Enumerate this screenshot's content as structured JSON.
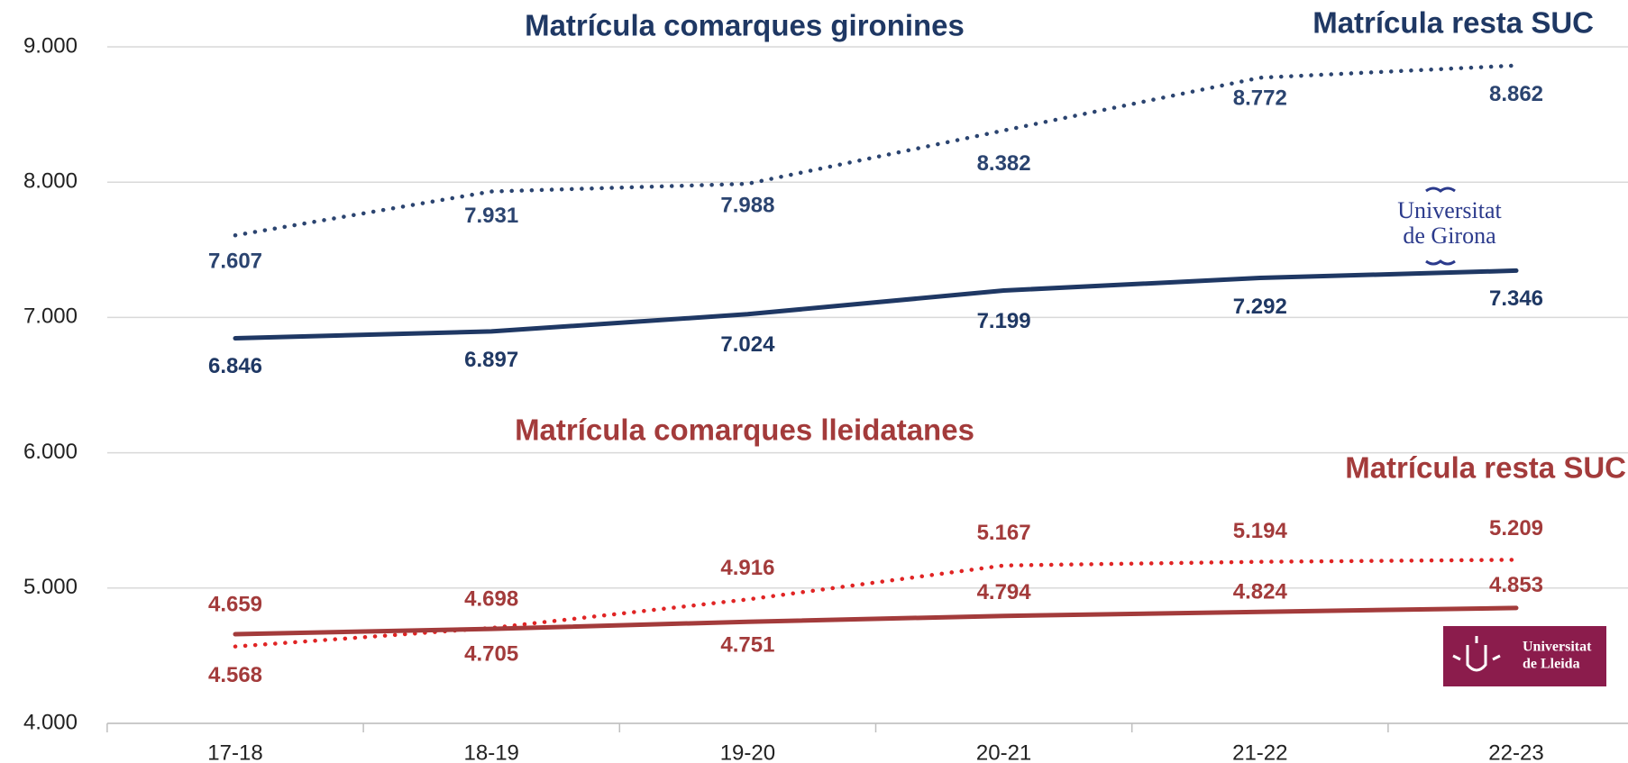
{
  "chart_data": {
    "type": "line",
    "categories": [
      "17-18",
      "18-19",
      "19-20",
      "20-21",
      "21-22",
      "22-23"
    ],
    "ylim": [
      4000,
      9000
    ],
    "yticks": [
      {
        "value": 4000,
        "label": "4.000"
      },
      {
        "value": 5000,
        "label": "5.000"
      },
      {
        "value": 6000,
        "label": "6.000"
      },
      {
        "value": 7000,
        "label": "7.000"
      },
      {
        "value": 8000,
        "label": "8.000"
      },
      {
        "value": 9000,
        "label": "9.000"
      }
    ],
    "grid": true,
    "series": [
      {
        "name": "Matrícula resta SUC",
        "color": "#2b4470",
        "dash": "dotted",
        "values": [
          7607,
          7931,
          7988,
          8382,
          8772,
          8862
        ],
        "value_labels": [
          "7.607",
          "7.931",
          "7.988",
          "8.382",
          "8.772",
          "8.862"
        ]
      },
      {
        "name": "Matrícula comarques gironines",
        "color": "#1f3864",
        "dash": "solid",
        "values": [
          6846,
          6897,
          7024,
          7199,
          7292,
          7346
        ],
        "value_labels": [
          "6.846",
          "6.897",
          "7.024",
          "7.199",
          "7.292",
          "7.346"
        ]
      },
      {
        "name": "Matrícula resta SUC",
        "color": "#e02424",
        "dash": "dotted",
        "values": [
          4568,
          4705,
          4916,
          5167,
          5194,
          5209
        ],
        "value_labels": [
          "4.568",
          "4.705",
          "4.916",
          "5.167",
          "5.194",
          "5.209"
        ]
      },
      {
        "name": "Matrícula comarques lleidatanes",
        "color": "#a33b3b",
        "dash": "solid",
        "values": [
          4659,
          4698,
          4751,
          4794,
          4824,
          4853
        ],
        "value_labels": [
          "4.659",
          "4.698",
          "4.751",
          "4.794",
          "4.824",
          "4.853"
        ]
      }
    ],
    "logos": [
      {
        "lines": [
          "Universitat",
          "de Girona"
        ]
      },
      {
        "lines": [
          "Universitat",
          "de Lleida"
        ]
      }
    ]
  }
}
